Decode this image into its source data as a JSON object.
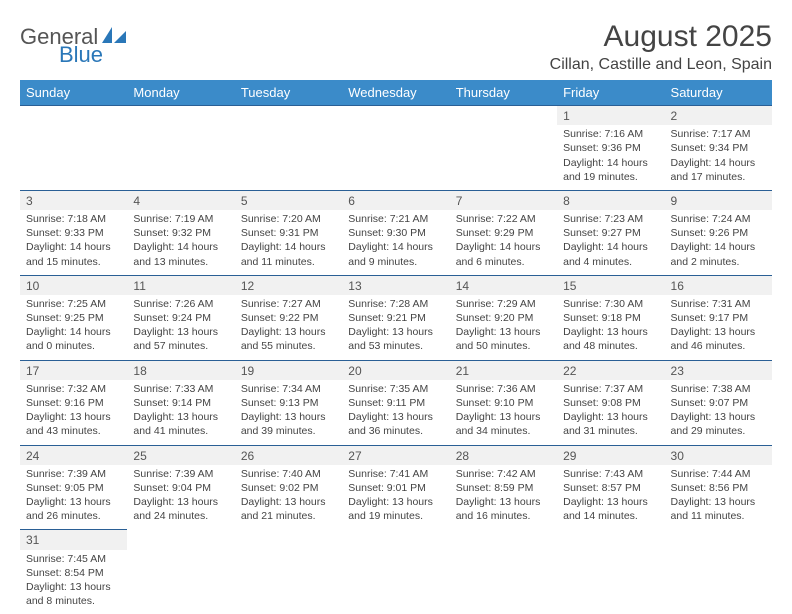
{
  "logo": {
    "part1": "General",
    "part2": "Blue"
  },
  "title": "August 2025",
  "location": "Cillan, Castille and Leon, Spain",
  "colors": {
    "header_bg": "#3b8bc9",
    "border": "#2a5f95",
    "alt_bg": "#f4f4f4",
    "text": "#444444",
    "logo_blue": "#2a77b8"
  },
  "daysOfWeek": [
    "Sunday",
    "Monday",
    "Tuesday",
    "Wednesday",
    "Thursday",
    "Friday",
    "Saturday"
  ],
  "weeks": [
    [
      null,
      null,
      null,
      null,
      null,
      {
        "n": "1",
        "sr": "Sunrise: 7:16 AM",
        "ss": "Sunset: 9:36 PM",
        "dl1": "Daylight: 14 hours",
        "dl2": "and 19 minutes."
      },
      {
        "n": "2",
        "sr": "Sunrise: 7:17 AM",
        "ss": "Sunset: 9:34 PM",
        "dl1": "Daylight: 14 hours",
        "dl2": "and 17 minutes."
      }
    ],
    [
      {
        "n": "3",
        "sr": "Sunrise: 7:18 AM",
        "ss": "Sunset: 9:33 PM",
        "dl1": "Daylight: 14 hours",
        "dl2": "and 15 minutes."
      },
      {
        "n": "4",
        "sr": "Sunrise: 7:19 AM",
        "ss": "Sunset: 9:32 PM",
        "dl1": "Daylight: 14 hours",
        "dl2": "and 13 minutes."
      },
      {
        "n": "5",
        "sr": "Sunrise: 7:20 AM",
        "ss": "Sunset: 9:31 PM",
        "dl1": "Daylight: 14 hours",
        "dl2": "and 11 minutes."
      },
      {
        "n": "6",
        "sr": "Sunrise: 7:21 AM",
        "ss": "Sunset: 9:30 PM",
        "dl1": "Daylight: 14 hours",
        "dl2": "and 9 minutes."
      },
      {
        "n": "7",
        "sr": "Sunrise: 7:22 AM",
        "ss": "Sunset: 9:29 PM",
        "dl1": "Daylight: 14 hours",
        "dl2": "and 6 minutes."
      },
      {
        "n": "8",
        "sr": "Sunrise: 7:23 AM",
        "ss": "Sunset: 9:27 PM",
        "dl1": "Daylight: 14 hours",
        "dl2": "and 4 minutes."
      },
      {
        "n": "9",
        "sr": "Sunrise: 7:24 AM",
        "ss": "Sunset: 9:26 PM",
        "dl1": "Daylight: 14 hours",
        "dl2": "and 2 minutes."
      }
    ],
    [
      {
        "n": "10",
        "sr": "Sunrise: 7:25 AM",
        "ss": "Sunset: 9:25 PM",
        "dl1": "Daylight: 14 hours",
        "dl2": "and 0 minutes."
      },
      {
        "n": "11",
        "sr": "Sunrise: 7:26 AM",
        "ss": "Sunset: 9:24 PM",
        "dl1": "Daylight: 13 hours",
        "dl2": "and 57 minutes."
      },
      {
        "n": "12",
        "sr": "Sunrise: 7:27 AM",
        "ss": "Sunset: 9:22 PM",
        "dl1": "Daylight: 13 hours",
        "dl2": "and 55 minutes."
      },
      {
        "n": "13",
        "sr": "Sunrise: 7:28 AM",
        "ss": "Sunset: 9:21 PM",
        "dl1": "Daylight: 13 hours",
        "dl2": "and 53 minutes."
      },
      {
        "n": "14",
        "sr": "Sunrise: 7:29 AM",
        "ss": "Sunset: 9:20 PM",
        "dl1": "Daylight: 13 hours",
        "dl2": "and 50 minutes."
      },
      {
        "n": "15",
        "sr": "Sunrise: 7:30 AM",
        "ss": "Sunset: 9:18 PM",
        "dl1": "Daylight: 13 hours",
        "dl2": "and 48 minutes."
      },
      {
        "n": "16",
        "sr": "Sunrise: 7:31 AM",
        "ss": "Sunset: 9:17 PM",
        "dl1": "Daylight: 13 hours",
        "dl2": "and 46 minutes."
      }
    ],
    [
      {
        "n": "17",
        "sr": "Sunrise: 7:32 AM",
        "ss": "Sunset: 9:16 PM",
        "dl1": "Daylight: 13 hours",
        "dl2": "and 43 minutes."
      },
      {
        "n": "18",
        "sr": "Sunrise: 7:33 AM",
        "ss": "Sunset: 9:14 PM",
        "dl1": "Daylight: 13 hours",
        "dl2": "and 41 minutes."
      },
      {
        "n": "19",
        "sr": "Sunrise: 7:34 AM",
        "ss": "Sunset: 9:13 PM",
        "dl1": "Daylight: 13 hours",
        "dl2": "and 39 minutes."
      },
      {
        "n": "20",
        "sr": "Sunrise: 7:35 AM",
        "ss": "Sunset: 9:11 PM",
        "dl1": "Daylight: 13 hours",
        "dl2": "and 36 minutes."
      },
      {
        "n": "21",
        "sr": "Sunrise: 7:36 AM",
        "ss": "Sunset: 9:10 PM",
        "dl1": "Daylight: 13 hours",
        "dl2": "and 34 minutes."
      },
      {
        "n": "22",
        "sr": "Sunrise: 7:37 AM",
        "ss": "Sunset: 9:08 PM",
        "dl1": "Daylight: 13 hours",
        "dl2": "and 31 minutes."
      },
      {
        "n": "23",
        "sr": "Sunrise: 7:38 AM",
        "ss": "Sunset: 9:07 PM",
        "dl1": "Daylight: 13 hours",
        "dl2": "and 29 minutes."
      }
    ],
    [
      {
        "n": "24",
        "sr": "Sunrise: 7:39 AM",
        "ss": "Sunset: 9:05 PM",
        "dl1": "Daylight: 13 hours",
        "dl2": "and 26 minutes."
      },
      {
        "n": "25",
        "sr": "Sunrise: 7:39 AM",
        "ss": "Sunset: 9:04 PM",
        "dl1": "Daylight: 13 hours",
        "dl2": "and 24 minutes."
      },
      {
        "n": "26",
        "sr": "Sunrise: 7:40 AM",
        "ss": "Sunset: 9:02 PM",
        "dl1": "Daylight: 13 hours",
        "dl2": "and 21 minutes."
      },
      {
        "n": "27",
        "sr": "Sunrise: 7:41 AM",
        "ss": "Sunset: 9:01 PM",
        "dl1": "Daylight: 13 hours",
        "dl2": "and 19 minutes."
      },
      {
        "n": "28",
        "sr": "Sunrise: 7:42 AM",
        "ss": "Sunset: 8:59 PM",
        "dl1": "Daylight: 13 hours",
        "dl2": "and 16 minutes."
      },
      {
        "n": "29",
        "sr": "Sunrise: 7:43 AM",
        "ss": "Sunset: 8:57 PM",
        "dl1": "Daylight: 13 hours",
        "dl2": "and 14 minutes."
      },
      {
        "n": "30",
        "sr": "Sunrise: 7:44 AM",
        "ss": "Sunset: 8:56 PM",
        "dl1": "Daylight: 13 hours",
        "dl2": "and 11 minutes."
      }
    ],
    [
      {
        "n": "31",
        "sr": "Sunrise: 7:45 AM",
        "ss": "Sunset: 8:54 PM",
        "dl1": "Daylight: 13 hours",
        "dl2": "and 8 minutes."
      },
      null,
      null,
      null,
      null,
      null,
      null
    ]
  ]
}
